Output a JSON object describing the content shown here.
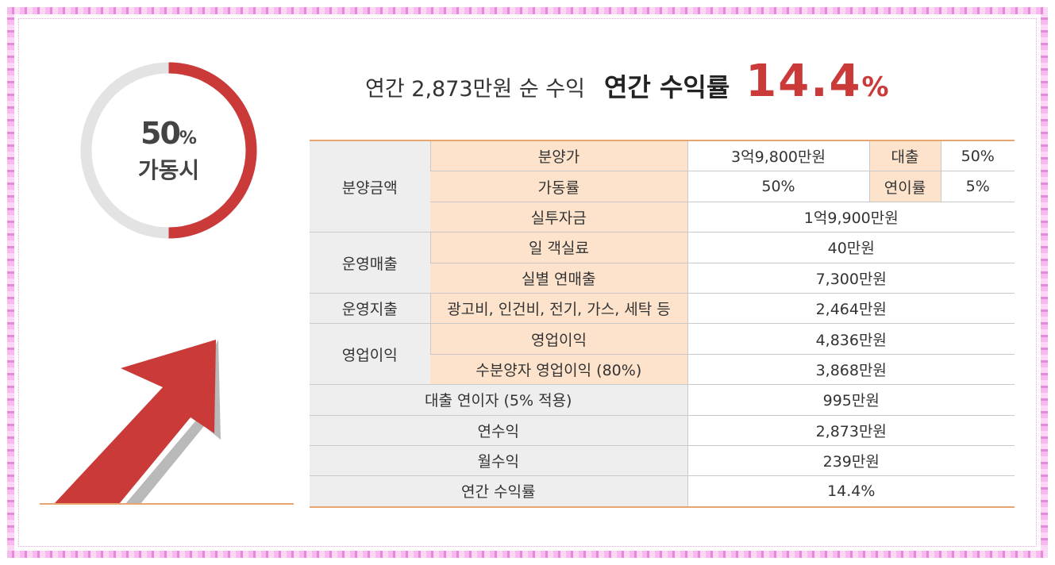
{
  "donut": {
    "percent": "50",
    "percent_symbol": "%",
    "label": "가동시",
    "fraction": 0.5,
    "track_color": "#e3e3e3",
    "fill_color": "#c93a39"
  },
  "heading": {
    "subtitle": "연간 2,873만원 순 수익",
    "title": "연간 수익률",
    "rate_number": "14.4",
    "rate_symbol": "%",
    "rate_color": "#c93a39"
  },
  "table": {
    "sale_group": "분양금액",
    "sale_price_label": "분양가",
    "sale_price_value": "3억9,800만원",
    "loan_label": "대출",
    "loan_value": "50%",
    "occupancy_label": "가동률",
    "occupancy_value": "50%",
    "interest_label": "연이률",
    "interest_value": "5%",
    "actual_investment_label": "실투자금",
    "actual_investment_value": "1억9,900만원",
    "ops_revenue_group": "운영매출",
    "daily_fee_label": "일 객실료",
    "daily_fee_value": "40만원",
    "annual_revenue_label": "실별 연매출",
    "annual_revenue_value": "7,300만원",
    "ops_expense_group": "운영지출",
    "ops_expense_label": "광고비, 인건비, 전기, 가스, 세탁 등",
    "ops_expense_value": "2,464만원",
    "op_profit_group": "영업이익",
    "op_profit_label": "영업이익",
    "op_profit_value": "4,836만원",
    "buyer_profit_label": "수분양자 영업이익 (80%)",
    "buyer_profit_value": "3,868만원",
    "loan_interest_label": "대출 연이자 (5% 적용)",
    "loan_interest_value": "995만원",
    "annual_income_label": "연수익",
    "annual_income_value": "2,873만원",
    "monthly_income_label": "월수익",
    "monthly_income_value": "239만원",
    "annual_yield_label": "연간 수익률",
    "annual_yield_value": "14.4%"
  },
  "colors": {
    "accent_red": "#c93a39",
    "table_header_peach": "#fde3cc",
    "table_group_gray": "#eeeeee",
    "table_border_orange": "#e8a56e",
    "border_pink": "#f0a6e4"
  },
  "icons": [
    "trend-up-arrow-icon"
  ]
}
